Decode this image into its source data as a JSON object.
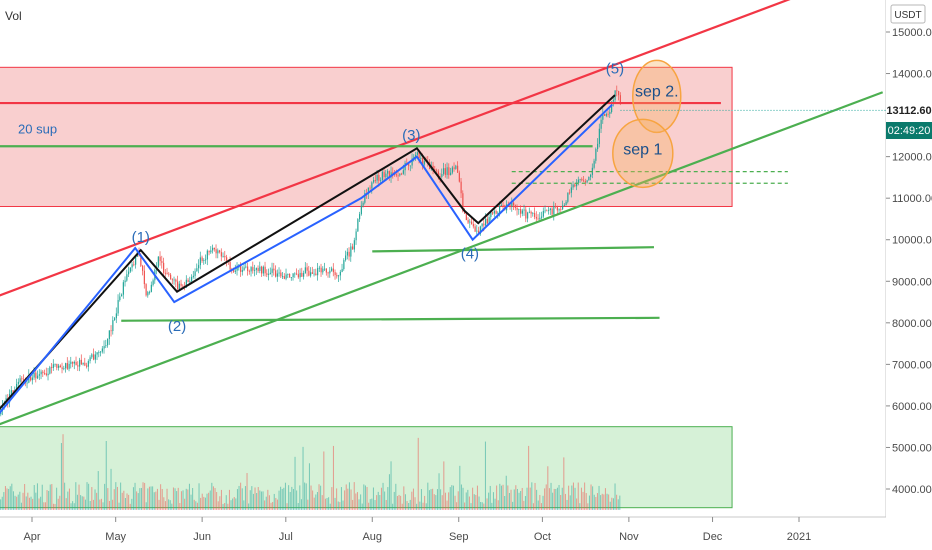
{
  "header": {
    "vol_label": "Vol",
    "currency": "USDT"
  },
  "price_tag": {
    "price": "13112.60",
    "countdown": "02:49:20"
  },
  "chart_data": {
    "type": "line",
    "title": "",
    "xlabel": "",
    "ylabel": "",
    "ylim": [
      3300,
      15500
    ],
    "y_ticks": [
      4000,
      5000,
      6000,
      7000,
      8000,
      9000,
      10000,
      11000,
      12000,
      13000,
      14000,
      15000
    ],
    "y_tick_labels": [
      "4000.00",
      "5000.00",
      "6000.00",
      "7000.00",
      "8000.00",
      "9000.00",
      "10000.00",
      "11000.00",
      "12000.00",
      "13000.00",
      "14000.00",
      "15000.00"
    ],
    "x_tick_labels": [
      "Apr",
      "May",
      "Jun",
      "Jul",
      "Aug",
      "Sep",
      "Oct",
      "Nov",
      "Dec",
      "2021"
    ],
    "x_tick_dates": [
      "2020-04-01",
      "2020-05-01",
      "2020-06-01",
      "2020-07-01",
      "2020-08-01",
      "2020-09-01",
      "2020-10-01",
      "2020-11-01",
      "2020-12-01",
      "2021-01-01"
    ],
    "grid": false,
    "accent_colors": {
      "up": "#26a69a",
      "down": "#ef5350",
      "resistance": "#f23645",
      "support": "#4caf50",
      "wave": "#2962ff",
      "zone": "#f8c3c3",
      "ellipse": "#f7a440"
    },
    "price_series": [
      [
        "2020-03-20",
        5900
      ],
      [
        "2020-03-28",
        6600
      ],
      [
        "2020-04-05",
        6800
      ],
      [
        "2020-04-12",
        7000
      ],
      [
        "2020-04-20",
        7000
      ],
      [
        "2020-04-28",
        7600
      ],
      [
        "2020-05-03",
        8800
      ],
      [
        "2020-05-09",
        9700
      ],
      [
        "2020-05-12",
        8600
      ],
      [
        "2020-05-16",
        9500
      ],
      [
        "2020-05-21",
        9000
      ],
      [
        "2020-05-25",
        8800
      ],
      [
        "2020-06-01",
        9600
      ],
      [
        "2020-06-06",
        9750
      ],
      [
        "2020-06-12",
        9300
      ],
      [
        "2020-06-20",
        9300
      ],
      [
        "2020-06-30",
        9150
      ],
      [
        "2020-07-10",
        9250
      ],
      [
        "2020-07-20",
        9200
      ],
      [
        "2020-07-25",
        9900
      ],
      [
        "2020-07-29",
        11100
      ],
      [
        "2020-08-02",
        11500
      ],
      [
        "2020-08-10",
        11600
      ],
      [
        "2020-08-17",
        12000
      ],
      [
        "2020-08-24",
        11600
      ],
      [
        "2020-08-31",
        11700
      ],
      [
        "2020-09-03",
        10500
      ],
      [
        "2020-09-08",
        10200
      ],
      [
        "2020-09-14",
        10700
      ],
      [
        "2020-09-20",
        10900
      ],
      [
        "2020-09-25",
        10600
      ],
      [
        "2020-10-01",
        10600
      ],
      [
        "2020-10-08",
        10800
      ],
      [
        "2020-10-13",
        11450
      ],
      [
        "2020-10-18",
        11500
      ],
      [
        "2020-10-22",
        12900
      ],
      [
        "2020-10-25",
        13100
      ],
      [
        "2020-10-27",
        13600
      ],
      [
        "2020-10-29",
        13300
      ]
    ],
    "series": [
      {
        "type": "zone",
        "from": [
          "2020-03-20",
          14150
        ],
        "to": [
          "2020-12-08",
          10800
        ]
      },
      {
        "type": "line",
        "color": "resistance",
        "points": [
          [
            "2020-03-20",
            8650
          ],
          [
            "2021-01-04",
            15950
          ]
        ]
      },
      {
        "type": "line",
        "color": "resistance",
        "points": [
          [
            "2020-03-20",
            13290
          ],
          [
            "2020-12-04",
            13290
          ]
        ]
      },
      {
        "type": "line",
        "color": "support",
        "points": [
          [
            "2020-03-20",
            5550
          ],
          [
            "2021-01-31",
            13550
          ]
        ]
      },
      {
        "type": "line",
        "color": "support",
        "points": [
          [
            "2020-03-20",
            12250
          ],
          [
            "2020-10-19",
            12250
          ]
        ]
      },
      {
        "type": "line",
        "color": "support",
        "points": [
          [
            "2020-05-03",
            8050
          ],
          [
            "2020-11-12",
            8120
          ]
        ]
      },
      {
        "type": "line",
        "color": "support",
        "points": [
          [
            "2020-08-01",
            9720
          ],
          [
            "2020-11-10",
            9820
          ]
        ]
      },
      {
        "type": "line",
        "color": "support",
        "dashed": true,
        "points": [
          [
            "2020-09-20",
            11640
          ],
          [
            "2020-12-28",
            11640
          ]
        ]
      },
      {
        "type": "line",
        "color": "support",
        "dashed": true,
        "points": [
          [
            "2020-09-20",
            11360
          ],
          [
            "2020-12-28",
            11360
          ]
        ]
      },
      {
        "type": "line",
        "color": "wave-black",
        "points": [
          [
            "2020-03-20",
            5900
          ],
          [
            "2020-05-10",
            9750
          ],
          [
            "2020-05-23",
            8750
          ],
          [
            "2020-08-17",
            12200
          ],
          [
            "2020-09-03",
            10700
          ],
          [
            "2020-09-08",
            10400
          ],
          [
            "2020-10-27",
            13480
          ]
        ]
      },
      {
        "type": "line",
        "color": "wave",
        "points": [
          [
            "2020-03-20",
            5800
          ],
          [
            "2020-05-08",
            9800
          ],
          [
            "2020-05-22",
            8500
          ],
          [
            "2020-07-28",
            11000
          ],
          [
            "2020-08-17",
            12000
          ],
          [
            "2020-09-06",
            10000
          ],
          [
            "2020-10-26",
            13250
          ]
        ]
      },
      {
        "type": "zone",
        "from": [
          "2020-03-20",
          5500
        ],
        "to": [
          "2020-12-08",
          3550
        ]
      }
    ],
    "annotations": [
      {
        "text": "(1)",
        "at": [
          "2020-05-10",
          9950
        ]
      },
      {
        "text": "(2)",
        "at": [
          "2020-05-23",
          7800
        ]
      },
      {
        "text": "(3)",
        "at": [
          "2020-08-15",
          12400
        ]
      },
      {
        "text": "(4)",
        "at": [
          "2020-09-05",
          9550
        ]
      },
      {
        "text": "(5)",
        "at": [
          "2020-10-27",
          14000
        ]
      },
      {
        "text": "sep 2.",
        "at": [
          "2020-11-11",
          13450
        ]
      },
      {
        "text": "sep 1",
        "at": [
          "2020-11-06",
          12050
        ]
      },
      {
        "text": "20 sup",
        "at": [
          "2020-03-27",
          12560
        ]
      }
    ],
    "legend": "none"
  }
}
